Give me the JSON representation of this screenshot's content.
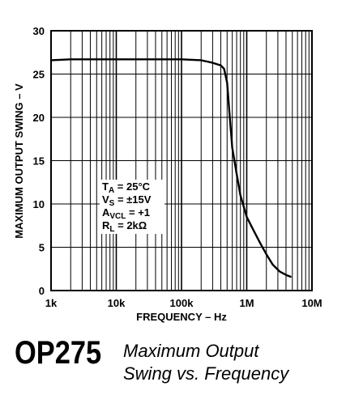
{
  "chart_data": {
    "type": "line",
    "xlabel": "FREQUENCY – Hz",
    "ylabel": "MAXIMUM OUTPUT SWING – V",
    "x_scale": "log",
    "xlim": [
      1000,
      10000000
    ],
    "ylim": [
      0,
      30
    ],
    "grid": true,
    "x_ticks": [
      {
        "value": 1000,
        "label": "1k"
      },
      {
        "value": 10000,
        "label": "10k"
      },
      {
        "value": 100000,
        "label": "100k"
      },
      {
        "value": 1000000,
        "label": "1M"
      },
      {
        "value": 10000000,
        "label": "10M"
      }
    ],
    "y_ticks": [
      {
        "value": 0,
        "label": "0"
      },
      {
        "value": 5,
        "label": "5"
      },
      {
        "value": 10,
        "label": "10"
      },
      {
        "value": 15,
        "label": "15"
      },
      {
        "value": 20,
        "label": "20"
      },
      {
        "value": 25,
        "label": "25"
      },
      {
        "value": 30,
        "label": "30"
      }
    ],
    "series": [
      {
        "color": "#000000",
        "points": [
          [
            1000,
            26.6
          ],
          [
            2000,
            26.7
          ],
          [
            10000,
            26.7
          ],
          [
            100000,
            26.7
          ],
          [
            200000,
            26.6
          ],
          [
            300000,
            26.3
          ],
          [
            400000,
            26.0
          ],
          [
            450000,
            25.6
          ],
          [
            500000,
            24.0
          ],
          [
            550000,
            20.0
          ],
          [
            600000,
            16.5
          ],
          [
            700000,
            13.5
          ],
          [
            800000,
            11.0
          ],
          [
            1000000,
            8.5
          ],
          [
            1300000,
            6.8
          ],
          [
            1600000,
            5.5
          ],
          [
            2000000,
            4.2
          ],
          [
            2500000,
            3.0
          ],
          [
            3200000,
            2.2
          ],
          [
            4000000,
            1.8
          ],
          [
            4700000,
            1.6
          ]
        ]
      }
    ],
    "conditions": [
      {
        "main": "T",
        "sub": "A",
        "rest": " = 25°C"
      },
      {
        "main": "V",
        "sub": "S",
        "rest": " = ±15V"
      },
      {
        "main": "A",
        "sub": "VCL",
        "rest": " = +1"
      },
      {
        "main": "R",
        "sub": "L",
        "rest": " = 2kΩ"
      }
    ]
  },
  "footer": {
    "part_number": "OP275",
    "caption_line1": "Maximum Output",
    "caption_line2": "Swing vs. Frequency"
  }
}
